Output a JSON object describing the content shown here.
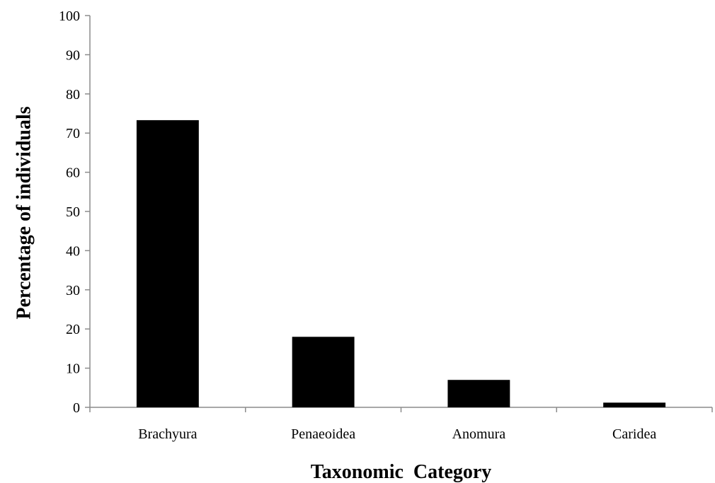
{
  "chart_data": {
    "type": "bar",
    "categories": [
      "Brachyura",
      "Penaeoidea",
      "Anomura",
      "Caridea"
    ],
    "values": [
      73.3,
      18,
      7,
      1.2
    ],
    "title": "",
    "xlabel": "Taxonomic  Category",
    "ylabel": "Percentage of individuals",
    "ylim": [
      0,
      100
    ],
    "yticks": [
      0,
      10,
      20,
      30,
      40,
      50,
      60,
      70,
      80,
      90,
      100
    ],
    "grid": false,
    "legend": "none",
    "colors": {
      "bar": "#000000",
      "axis": "#8c8c8c",
      "text": "#000000"
    }
  }
}
